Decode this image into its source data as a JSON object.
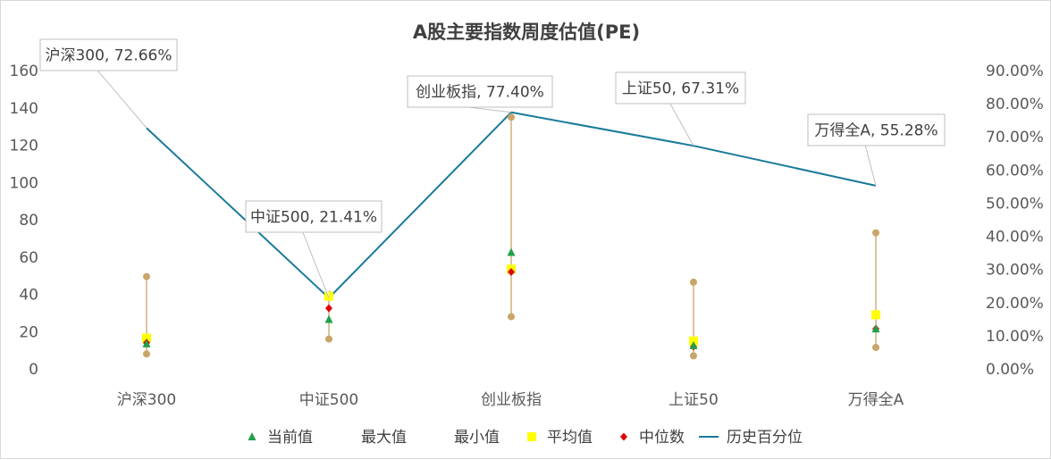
{
  "chart_data": {
    "type": "line",
    "title": "A股主要指数周度估值(PE)",
    "categories": [
      "沪深300",
      "中证500",
      "创业板指",
      "上证50",
      "万得全A"
    ],
    "y_left": {
      "ylim": [
        0,
        160
      ],
      "ticks": [
        0,
        20,
        40,
        60,
        80,
        100,
        120,
        140,
        160
      ]
    },
    "y_right": {
      "ylim": [
        0,
        0.9
      ],
      "ticks": [
        "0.00%",
        "10.00%",
        "20.00%",
        "30.00%",
        "40.00%",
        "50.00%",
        "60.00%",
        "70.00%",
        "80.00%",
        "90.00%"
      ]
    },
    "series": [
      {
        "name": "当前值",
        "axis": "left",
        "marker": "triangle",
        "color": "#21a04a",
        "values": [
          13.5,
          26.5,
          62.5,
          12.5,
          21.5
        ]
      },
      {
        "name": "最大值",
        "axis": "left",
        "marker": "circle",
        "color": "#c9a56a",
        "values": [
          49.5,
          40,
          135,
          46.5,
          73
        ]
      },
      {
        "name": "最小值",
        "axis": "left",
        "marker": "circle",
        "color": "#c9a56a",
        "values": [
          8,
          16,
          28,
          7,
          11.5
        ]
      },
      {
        "name": "平均值",
        "axis": "left",
        "marker": "square",
        "color": "#ffff00",
        "values": [
          16.5,
          39,
          53.5,
          15,
          29
        ]
      },
      {
        "name": "中位数",
        "axis": "left",
        "marker": "diamond",
        "color": "#e00000",
        "values": [
          14,
          32.5,
          52,
          12,
          21.5
        ]
      },
      {
        "name": "历史百分位",
        "axis": "right",
        "marker": "line",
        "color": "#1a7a9a",
        "values": [
          0.7266,
          0.2141,
          0.774,
          0.6731,
          0.5528
        ]
      }
    ],
    "data_labels": [
      "沪深300, 72.66%",
      "中证500, 21.41%",
      "创业板指, 77.40%",
      "上证50, 67.31%",
      "万得全A, 55.28%"
    ],
    "legend_position": "bottom",
    "grid": false,
    "colors": {
      "range_line": "#c9a56a",
      "percentile_line": "#1a7a9a",
      "callout_border": "#bfbfbf"
    }
  }
}
